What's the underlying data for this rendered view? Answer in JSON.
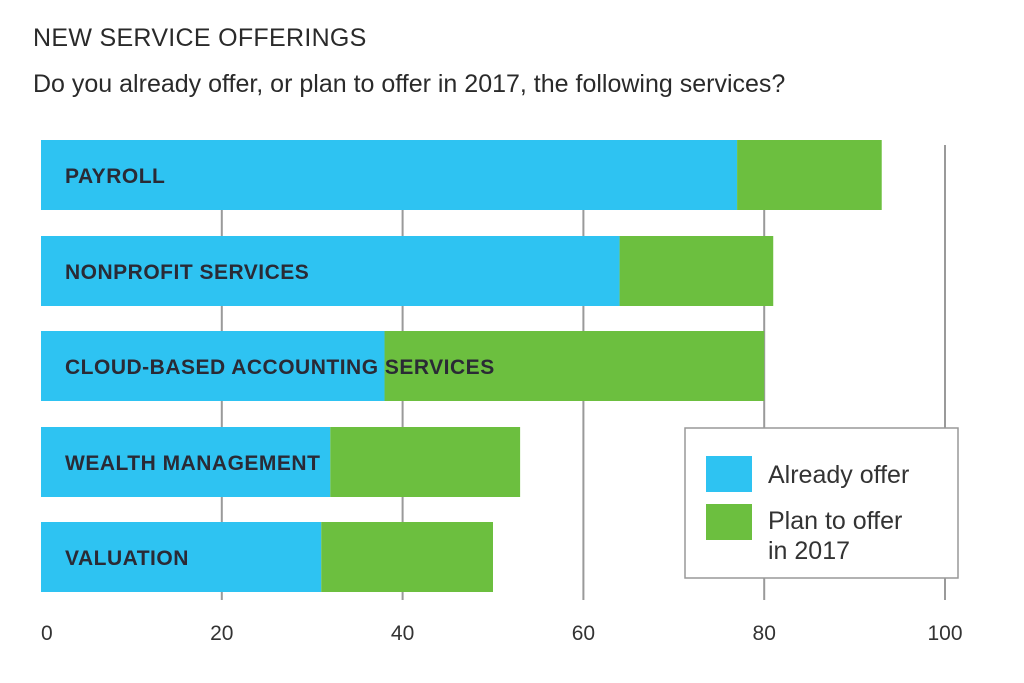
{
  "chart_data": {
    "type": "bar",
    "orientation": "horizontal",
    "stacked": true,
    "title": "NEW SERVICE OFFERINGS",
    "subtitle": "Do you already offer, or plan to offer in 2017, the following services?",
    "categories": [
      "PAYROLL",
      "NONPROFIT SERVICES",
      "CLOUD-BASED ACCOUNTING SERVICES",
      "WEALTH MANAGEMENT",
      "VALUATION"
    ],
    "series": [
      {
        "name": "Already offer",
        "color": "#2ec3f2",
        "values": [
          77,
          64,
          38,
          32,
          31
        ]
      },
      {
        "name": "Plan to offer in 2017",
        "color": "#6cbf3f",
        "values": [
          16,
          17,
          42,
          21,
          19
        ]
      }
    ],
    "legend_lines": [
      [
        "Already offer"
      ],
      [
        "Plan to offer",
        "in 2017"
      ]
    ],
    "xlim": [
      0,
      100
    ],
    "xticks": [
      0,
      20,
      40,
      60,
      80,
      100
    ],
    "xtick_labels": [
      "0",
      "20",
      "40",
      "60",
      "80",
      "100"
    ],
    "grid": true,
    "legend_position": "bottom-right"
  }
}
